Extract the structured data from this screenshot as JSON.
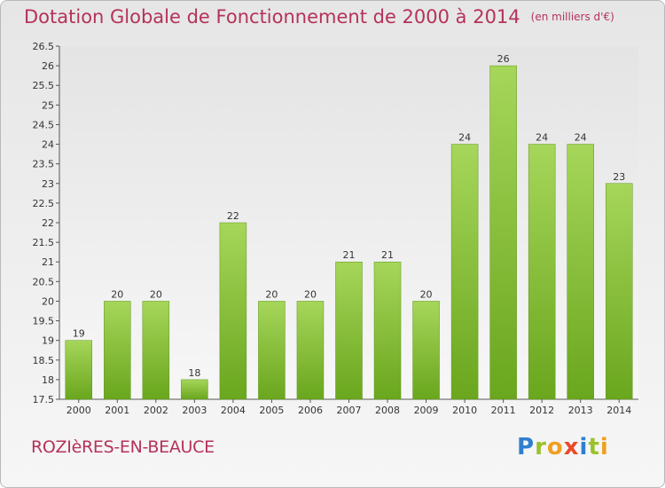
{
  "title": "Dotation Globale de Fonctionnement de 2000 à 2014",
  "subtitle": "(en milliers d'€)",
  "commune": "ROZIèRES-EN-BEAUCE",
  "logo": {
    "letters": [
      "P",
      "r",
      "o",
      "x",
      "i",
      "t",
      "i"
    ],
    "colors": [
      "#2f7fd0",
      "#9bc12b",
      "#f0a020",
      "#e84a2a",
      "#2f7fd0",
      "#9bc12b",
      "#f0a020"
    ]
  },
  "colors": {
    "bar_light": "#a6d65a",
    "bar_dark": "#6aa61e",
    "title": "#b5325a"
  },
  "chart_data": {
    "type": "bar",
    "categories": [
      "2000",
      "2001",
      "2002",
      "2003",
      "2004",
      "2005",
      "2006",
      "2007",
      "2008",
      "2009",
      "2010",
      "2011",
      "2012",
      "2013",
      "2014"
    ],
    "values": [
      19,
      20,
      20,
      18,
      22,
      20,
      20,
      21,
      21,
      20,
      24,
      26,
      24,
      24,
      23
    ],
    "value_labels": [
      "19",
      "20",
      "20",
      "18",
      "22",
      "20",
      "20",
      "21",
      "21",
      "20",
      "24",
      "26",
      "24",
      "24",
      "23"
    ],
    "yticks": [
      "17.5",
      "18",
      "18.5",
      "19",
      "19.5",
      "20",
      "20.5",
      "21",
      "21.5",
      "22",
      "22.5",
      "23",
      "23.5",
      "24",
      "24.5",
      "25",
      "25.5",
      "26",
      "26.5"
    ],
    "ylim": [
      17.5,
      26.5
    ],
    "grid": false,
    "title": "Dotation Globale de Fonctionnement de 2000 à 2014",
    "xlabel": "",
    "ylabel": "(en milliers d'€)"
  }
}
